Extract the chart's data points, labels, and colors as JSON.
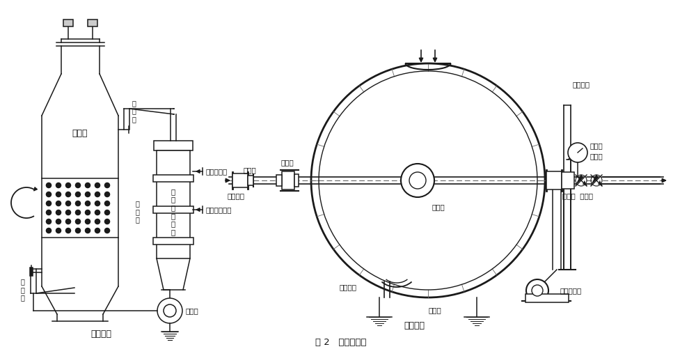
{
  "title": "图 2   连续蒸煮器",
  "bg_color": "#f0f0ec",
  "line_color": "#1a1a1a",
  "text_color": "#111111",
  "left_labels": {
    "main_vessel": "蒸煮锅",
    "upper_circ": "上\n循\n环",
    "lower_circ": "下\n循\n环",
    "middle_circ": "中\n循\n环",
    "heater": "列\n管\n式\n加\n热\n器",
    "steam_in": "加热蒸汽入口",
    "condensate_out": "冷凝水出口",
    "circ_pump": "循环泵",
    "system_label": "循环系统"
  },
  "right_labels": {
    "seal_tube_left": "密封接管",
    "float_head": "浮动头",
    "nozzle_tube": "喷射管",
    "seal_tube_right": "密封接管",
    "safety_valve": "安全阀",
    "steam_pipe": "蒸汽管",
    "check_valve": "止回阀  截止阀",
    "worm": "蜗杆、蜗轮",
    "insulation": "保温层",
    "blow_pipe": "喷放管",
    "blow_elbow": "喷放弯管",
    "ball_structure": "蒸球结构"
  }
}
